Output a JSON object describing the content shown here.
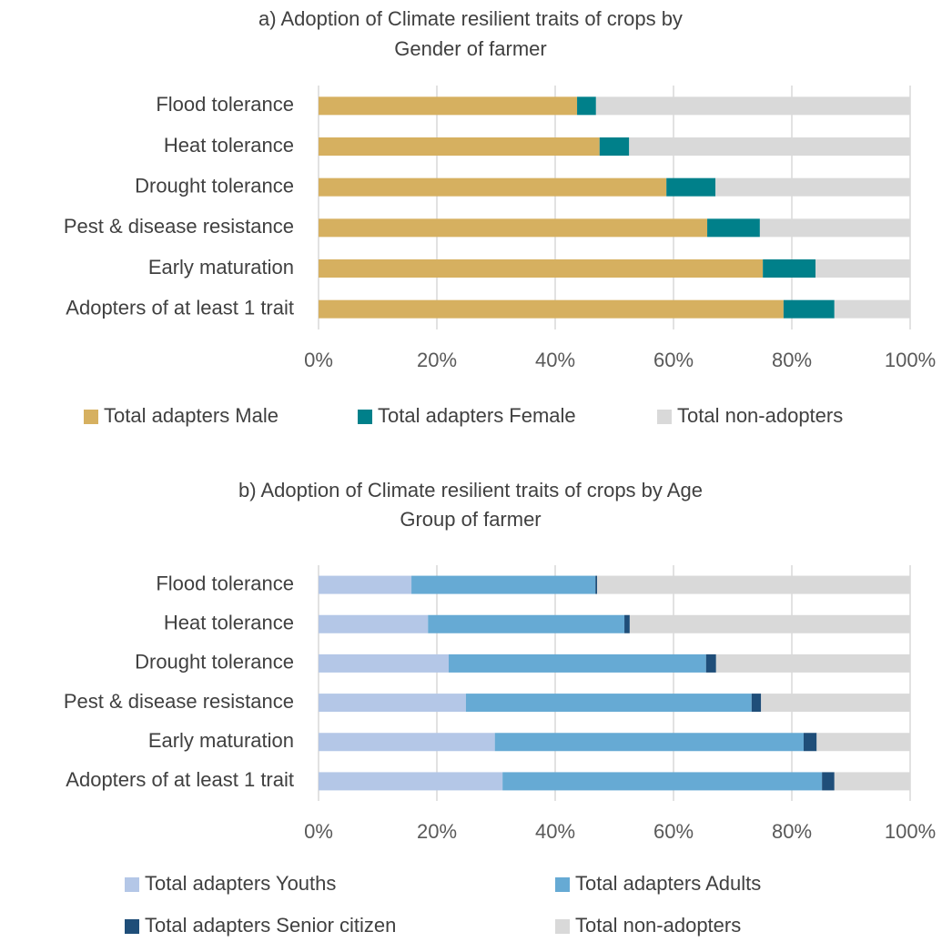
{
  "chart_data": [
    {
      "type": "stacked-bar-horizontal",
      "title": [
        "a) Adoption of Climate resilient traits of crops by",
        "Gender of farmer"
      ],
      "categories": [
        "Flood tolerance",
        "Heat tolerance",
        "Drought tolerance",
        "Pest & disease resistance",
        "Early maturation",
        "Adopters of at least 1 trait"
      ],
      "series": [
        {
          "name": "Total adapters Male",
          "color": "#d6b060",
          "values": [
            43.7,
            47.5,
            58.8,
            65.7,
            75.1,
            78.6
          ]
        },
        {
          "name": "Total adapters Female",
          "color": "#00808a",
          "values": [
            3.2,
            5.0,
            8.3,
            8.9,
            8.9,
            8.6
          ]
        },
        {
          "name": "Total non-adopters",
          "color": "#d9d9d9",
          "values": [
            53.1,
            47.5,
            32.9,
            25.4,
            16.0,
            12.8
          ]
        }
      ],
      "xlim": [
        0,
        100
      ],
      "xticks": [
        {
          "value": 0,
          "label": "0%"
        },
        {
          "value": 20,
          "label": "20%"
        },
        {
          "value": 40,
          "label": "40%"
        },
        {
          "value": 60,
          "label": "60%"
        },
        {
          "value": 80,
          "label": "80%"
        },
        {
          "value": 100,
          "label": "100%"
        }
      ],
      "grid": true,
      "legend": "bottom"
    },
    {
      "type": "stacked-bar-horizontal",
      "title": [
        "b) Adoption of Climate resilient traits of crops by Age",
        "Group of farmer"
      ],
      "categories": [
        "Flood tolerance",
        "Heat tolerance",
        "Drought tolerance",
        "Pest & disease resistance",
        "Early maturation",
        "Adopters of at least 1 trait"
      ],
      "series": [
        {
          "name": "Total adapters Youths",
          "color": "#b4c7e7",
          "values": [
            15.7,
            18.5,
            22.0,
            24.9,
            29.8,
            31.1
          ]
        },
        {
          "name": "Total adapters Adults",
          "color": "#66aad4",
          "values": [
            31.1,
            33.2,
            43.5,
            48.3,
            52.2,
            54.0
          ]
        },
        {
          "name": "Total adapters Senior citizen",
          "color": "#1f4e79",
          "values": [
            0.3,
            0.9,
            1.7,
            1.6,
            2.2,
            2.1
          ]
        },
        {
          "name": "Total non-adopters",
          "color": "#d9d9d9",
          "values": [
            52.9,
            47.4,
            32.8,
            25.2,
            15.8,
            12.8
          ]
        }
      ],
      "xlim": [
        0,
        100
      ],
      "xticks": [
        {
          "value": 0,
          "label": "0%"
        },
        {
          "value": 20,
          "label": "20%"
        },
        {
          "value": 40,
          "label": "40%"
        },
        {
          "value": 60,
          "label": "60%"
        },
        {
          "value": 80,
          "label": "80%"
        },
        {
          "value": 100,
          "label": "100%"
        }
      ],
      "grid": true,
      "legend": "bottom"
    }
  ]
}
